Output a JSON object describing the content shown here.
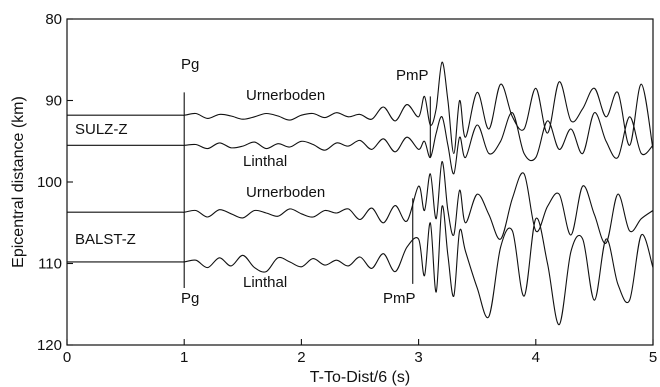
{
  "chart_data": {
    "type": "line",
    "title": "",
    "xlabel": "T-To-Dist/6 (s)",
    "ylabel": "Epicentral distance (km)",
    "xlim": [
      0,
      5
    ],
    "ylim": [
      80,
      120
    ],
    "y_inverted": true,
    "grid": false,
    "x_ticks": [
      "0",
      "1",
      "2",
      "3",
      "4",
      "5"
    ],
    "y_ticks": [
      "80",
      "90",
      "100",
      "110",
      "120"
    ],
    "series": [
      {
        "name": "Urnerboden",
        "baseline_km": 91.8,
        "x": [
          0.0,
          0.9,
          1.0,
          1.1,
          1.2,
          1.3,
          1.4,
          1.5,
          1.6,
          1.7,
          1.8,
          1.9,
          2.0,
          2.1,
          2.2,
          2.3,
          2.4,
          2.5,
          2.6,
          2.7,
          2.8,
          2.9,
          3.0,
          3.05,
          3.1,
          3.15,
          3.2,
          3.25,
          3.3,
          3.35,
          3.4,
          3.5,
          3.6,
          3.7,
          3.8,
          3.9,
          4.0,
          4.1,
          4.2,
          4.3,
          4.4,
          4.5,
          4.6,
          4.7,
          4.8,
          4.9,
          5.0
        ],
        "y": [
          91.8,
          91.8,
          91.8,
          91.6,
          92.2,
          91.7,
          91.9,
          92.3,
          92.0,
          91.6,
          91.9,
          92.4,
          91.8,
          91.6,
          92.1,
          91.5,
          92.0,
          91.7,
          92.3,
          90.8,
          92.5,
          90.5,
          92.0,
          89.5,
          93.0,
          91.0,
          85.3,
          90.0,
          96.5,
          90.0,
          94.5,
          89.0,
          93.5,
          88.0,
          92.0,
          93.5,
          88.5,
          94.0,
          87.7,
          92.5,
          91.0,
          88.5,
          92.0,
          89.0,
          95.5,
          88.0,
          96.0
        ]
      },
      {
        "name": "Linthal",
        "baseline_km": 95.5,
        "x": [
          0.0,
          0.9,
          1.0,
          1.1,
          1.2,
          1.3,
          1.4,
          1.5,
          1.6,
          1.7,
          1.8,
          1.9,
          2.0,
          2.1,
          2.2,
          2.3,
          2.4,
          2.5,
          2.6,
          2.7,
          2.8,
          2.9,
          3.0,
          3.05,
          3.1,
          3.15,
          3.2,
          3.25,
          3.3,
          3.35,
          3.4,
          3.5,
          3.6,
          3.7,
          3.8,
          3.9,
          4.0,
          4.1,
          4.2,
          4.3,
          4.4,
          4.5,
          4.6,
          4.7,
          4.8,
          4.9,
          5.0
        ],
        "y": [
          95.5,
          95.5,
          95.5,
          95.4,
          95.9,
          95.2,
          95.8,
          95.6,
          95.1,
          95.9,
          95.3,
          95.7,
          95.0,
          95.4,
          96.1,
          95.2,
          95.6,
          94.9,
          96.0,
          94.7,
          96.3,
          94.5,
          96.0,
          95.0,
          97.0,
          94.0,
          92.0,
          95.5,
          99.0,
          94.5,
          97.0,
          93.0,
          96.5,
          95.0,
          91.5,
          96.5,
          97.0,
          92.5,
          96.0,
          93.5,
          96.5,
          91.5,
          95.0,
          97.0,
          92.0,
          96.5,
          95.5
        ]
      },
      {
        "name": "Urnerboden",
        "baseline_km": 103.7,
        "x": [
          0.0,
          0.9,
          1.0,
          1.1,
          1.2,
          1.3,
          1.4,
          1.5,
          1.6,
          1.7,
          1.8,
          1.9,
          2.0,
          2.1,
          2.2,
          2.3,
          2.4,
          2.5,
          2.6,
          2.7,
          2.8,
          2.9,
          3.0,
          3.05,
          3.1,
          3.15,
          3.2,
          3.25,
          3.3,
          3.35,
          3.4,
          3.5,
          3.6,
          3.7,
          3.8,
          3.9,
          4.0,
          4.1,
          4.2,
          4.3,
          4.4,
          4.5,
          4.6,
          4.7,
          4.8,
          4.9,
          5.0
        ],
        "y": [
          103.7,
          103.7,
          103.7,
          103.5,
          104.3,
          103.4,
          103.9,
          104.4,
          103.5,
          103.8,
          104.2,
          103.3,
          103.9,
          104.3,
          103.5,
          103.8,
          103.3,
          104.6,
          103.2,
          105.0,
          102.9,
          104.8,
          100.5,
          103.5,
          99.0,
          104.5,
          97.5,
          103.5,
          106.5,
          101.0,
          105.0,
          101.5,
          104.0,
          107.0,
          102.0,
          99.0,
          106.0,
          103.0,
          101.5,
          106.5,
          100.5,
          104.0,
          107.5,
          101.5,
          106.0,
          104.5,
          103.5
        ]
      },
      {
        "name": "Linthal",
        "baseline_km": 109.8,
        "x": [
          0.0,
          0.9,
          1.0,
          1.1,
          1.2,
          1.3,
          1.4,
          1.5,
          1.6,
          1.7,
          1.8,
          1.9,
          2.0,
          2.1,
          2.2,
          2.3,
          2.4,
          2.5,
          2.6,
          2.7,
          2.8,
          2.9,
          3.0,
          3.05,
          3.1,
          3.15,
          3.2,
          3.25,
          3.3,
          3.35,
          3.4,
          3.5,
          3.6,
          3.7,
          3.8,
          3.9,
          4.0,
          4.1,
          4.2,
          4.3,
          4.4,
          4.5,
          4.6,
          4.7,
          4.8,
          4.9,
          5.0
        ],
        "y": [
          109.8,
          109.8,
          109.8,
          109.6,
          110.5,
          109.3,
          110.3,
          109.0,
          110.5,
          111.0,
          109.3,
          109.8,
          110.4,
          109.4,
          110.2,
          109.6,
          110.3,
          109.2,
          110.6,
          108.8,
          111.0,
          108.0,
          107.0,
          111.5,
          105.0,
          113.5,
          103.0,
          109.0,
          114.0,
          106.0,
          108.5,
          113.0,
          116.5,
          108.0,
          106.0,
          114.0,
          104.5,
          110.0,
          117.5,
          108.5,
          107.0,
          114.5,
          107.0,
          112.5,
          114.5,
          106.5,
          110.5
        ]
      }
    ],
    "labels": {
      "pg_top": "Pg",
      "pg_bottom": "Pg",
      "pmp_top": "PmP",
      "pmp_bottom": "PmP",
      "station_1": "SULZ-Z",
      "station_2": "BALST-Z",
      "trace_1": "Urnerboden",
      "trace_2": "Linthal",
      "trace_3": "Urnerboden",
      "trace_4": "Linthal"
    },
    "picks": {
      "pg_x": 1.0,
      "pg_y": [
        89.0,
        113.0
      ],
      "pmp_top_x": 3.1,
      "pmp_top_y": [
        89.5,
        97.0
      ],
      "pmp_bottom_x": 2.95,
      "pmp_bottom_y": [
        102.0,
        112.5
      ]
    }
  }
}
